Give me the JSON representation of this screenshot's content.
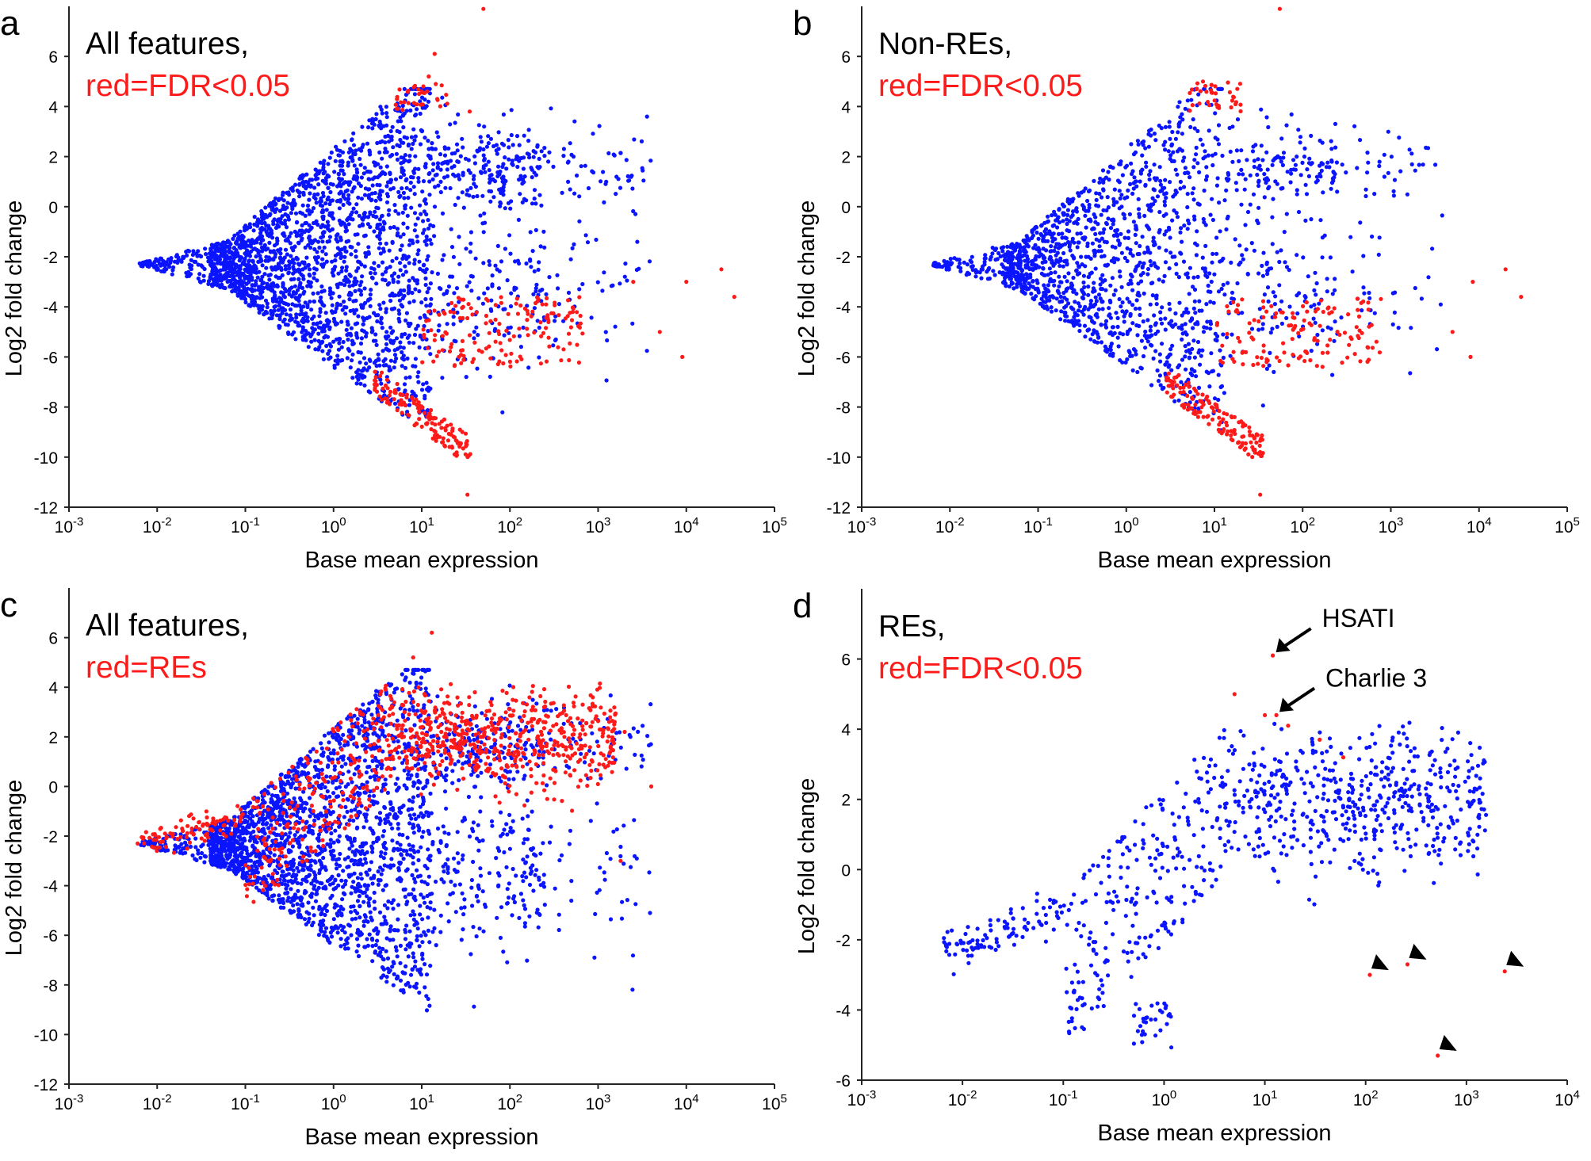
{
  "colors": {
    "blue": "#0a14ff",
    "red": "#ff1a1a",
    "axis": "#222222",
    "text": "#000000"
  },
  "chart_data": [
    {
      "type": "scatter",
      "panel": "a",
      "xlabel": "Base mean expression",
      "ylabel": "Log2 fold change",
      "xscale": "log",
      "xlim": [
        0.001,
        100000
      ],
      "ylim": [
        -12,
        8
      ],
      "x_ticks": [
        [
          "10",
          "-3"
        ],
        [
          "10",
          "-2"
        ],
        [
          "10",
          "-1"
        ],
        [
          "10",
          "0"
        ],
        [
          "10",
          "1"
        ],
        [
          "10",
          "2"
        ],
        [
          "10",
          "3"
        ],
        [
          "10",
          "4"
        ],
        [
          "10",
          "5"
        ]
      ],
      "y_ticks": [
        "6",
        "4",
        "2",
        "0",
        "-2",
        "-4",
        "-6",
        "-8",
        "-10",
        "-12"
      ],
      "annotation_lines": [
        {
          "text": "All features,",
          "color": "#000000"
        },
        {
          "text": "red=FDR<0.05",
          "color": "#ff1a1a"
        }
      ],
      "series": [
        {
          "color": "blue",
          "model": "funnel",
          "approx_count": 2600
        },
        {
          "color": "red",
          "model": "significant",
          "approx_count": 320,
          "points": [
            [
              50,
              7.9
            ],
            [
              14,
              6.1
            ],
            [
              12,
              5.2
            ],
            [
              10,
              4.6
            ],
            [
              15,
              4.3
            ],
            [
              35,
              3.8
            ],
            [
              33,
              -11.5
            ],
            [
              10000,
              -3.0
            ],
            [
              25000,
              -2.5
            ],
            [
              35000,
              -3.6
            ],
            [
              5000,
              -5.0
            ],
            [
              9000,
              -6.0
            ],
            [
              2500,
              -3.0
            ]
          ]
        }
      ]
    },
    {
      "type": "scatter",
      "panel": "b",
      "xlabel": "Base mean expression",
      "ylabel": "Log2 fold change",
      "xscale": "log",
      "xlim": [
        0.001,
        100000
      ],
      "ylim": [
        -12,
        8
      ],
      "x_ticks": [
        [
          "10",
          "-3"
        ],
        [
          "10",
          "-2"
        ],
        [
          "10",
          "-1"
        ],
        [
          "10",
          "0"
        ],
        [
          "10",
          "1"
        ],
        [
          "10",
          "2"
        ],
        [
          "10",
          "3"
        ],
        [
          "10",
          "4"
        ],
        [
          "10",
          "5"
        ]
      ],
      "y_ticks": [
        "6",
        "4",
        "2",
        "0",
        "-2",
        "-4",
        "-6",
        "-8",
        "-10",
        "-12"
      ],
      "annotation_lines": [
        {
          "text": "Non-REs,",
          "color": "#000000"
        },
        {
          "text": "red=FDR<0.05",
          "color": "#ff1a1a"
        }
      ],
      "series": [
        {
          "color": "blue",
          "model": "funnel",
          "approx_count": 1700
        },
        {
          "color": "red",
          "model": "significant",
          "approx_count": 310,
          "points": [
            [
              55,
              7.9
            ],
            [
              33,
              -11.5
            ],
            [
              8500,
              -3.0
            ],
            [
              20000,
              -2.5
            ],
            [
              30000,
              -3.6
            ],
            [
              5000,
              -5.0
            ],
            [
              8000,
              -6.0
            ]
          ]
        }
      ]
    },
    {
      "type": "scatter",
      "panel": "c",
      "xlabel": "Base mean expression",
      "ylabel": "Log2 fold change",
      "xscale": "log",
      "xlim": [
        0.001,
        100000
      ],
      "ylim": [
        -12,
        8
      ],
      "x_ticks": [
        [
          "10",
          "-3"
        ],
        [
          "10",
          "-2"
        ],
        [
          "10",
          "-1"
        ],
        [
          "10",
          "0"
        ],
        [
          "10",
          "1"
        ],
        [
          "10",
          "2"
        ],
        [
          "10",
          "3"
        ],
        [
          "10",
          "4"
        ],
        [
          "10",
          "5"
        ]
      ],
      "y_ticks": [
        "6",
        "4",
        "2",
        "0",
        "-2",
        "-4",
        "-6",
        "-8",
        "-10",
        "-12"
      ],
      "annotation_lines": [
        {
          "text": "All features,",
          "color": "#000000"
        },
        {
          "text": "red=REs",
          "color": "#ff1a1a"
        }
      ],
      "series": [
        {
          "color": "blue",
          "model": "funnel",
          "approx_count": 2600
        },
        {
          "color": "red",
          "model": "res",
          "approx_count": 900,
          "points": [
            [
              13,
              6.2
            ],
            [
              8,
              5.2
            ],
            [
              40,
              3.8
            ],
            [
              2000,
              2.2
            ],
            [
              1800,
              -3.0
            ],
            [
              4000,
              0.0
            ],
            [
              0.006,
              -2.3
            ]
          ]
        }
      ]
    },
    {
      "type": "scatter",
      "panel": "d",
      "xlabel": "Base mean expression",
      "ylabel": "Log2 fold change",
      "xscale": "log",
      "xlim": [
        0.001,
        10000
      ],
      "ylim": [
        -6,
        8
      ],
      "x_ticks": [
        [
          "10",
          "-3"
        ],
        [
          "10",
          "-2"
        ],
        [
          "10",
          "-1"
        ],
        [
          "10",
          "0"
        ],
        [
          "10",
          "1"
        ],
        [
          "10",
          "2"
        ],
        [
          "10",
          "3"
        ],
        [
          "10",
          "4"
        ]
      ],
      "y_ticks": [
        "6",
        "4",
        "2",
        "0",
        "-2",
        "-4",
        "-6"
      ],
      "annotation_lines": [
        {
          "text": "REs,",
          "color": "#000000"
        },
        {
          "text": "red=FDR<0.05",
          "color": "#ff1a1a"
        }
      ],
      "callouts": [
        {
          "text": "HSATI",
          "x": 12,
          "y": 6.1
        },
        {
          "text": "Charlie 3",
          "x": 13,
          "y": 4.4
        }
      ],
      "markers": [
        [
          110,
          -3.0
        ],
        [
          260,
          -2.7
        ],
        [
          2400,
          -2.9
        ],
        [
          520,
          -5.3
        ]
      ],
      "series": [
        {
          "color": "blue",
          "model": "res",
          "approx_count": 900
        },
        {
          "color": "red",
          "model": "none",
          "points": [
            [
              12,
              6.1
            ],
            [
              13,
              4.4
            ],
            [
              5,
              5.0
            ],
            [
              10,
              4.4
            ],
            [
              17,
              4.1
            ],
            [
              35,
              3.7
            ],
            [
              60,
              3.2
            ],
            [
              110,
              -3.0
            ],
            [
              260,
              -2.7
            ],
            [
              2400,
              -2.9
            ],
            [
              520,
              -5.3
            ]
          ]
        }
      ]
    }
  ]
}
